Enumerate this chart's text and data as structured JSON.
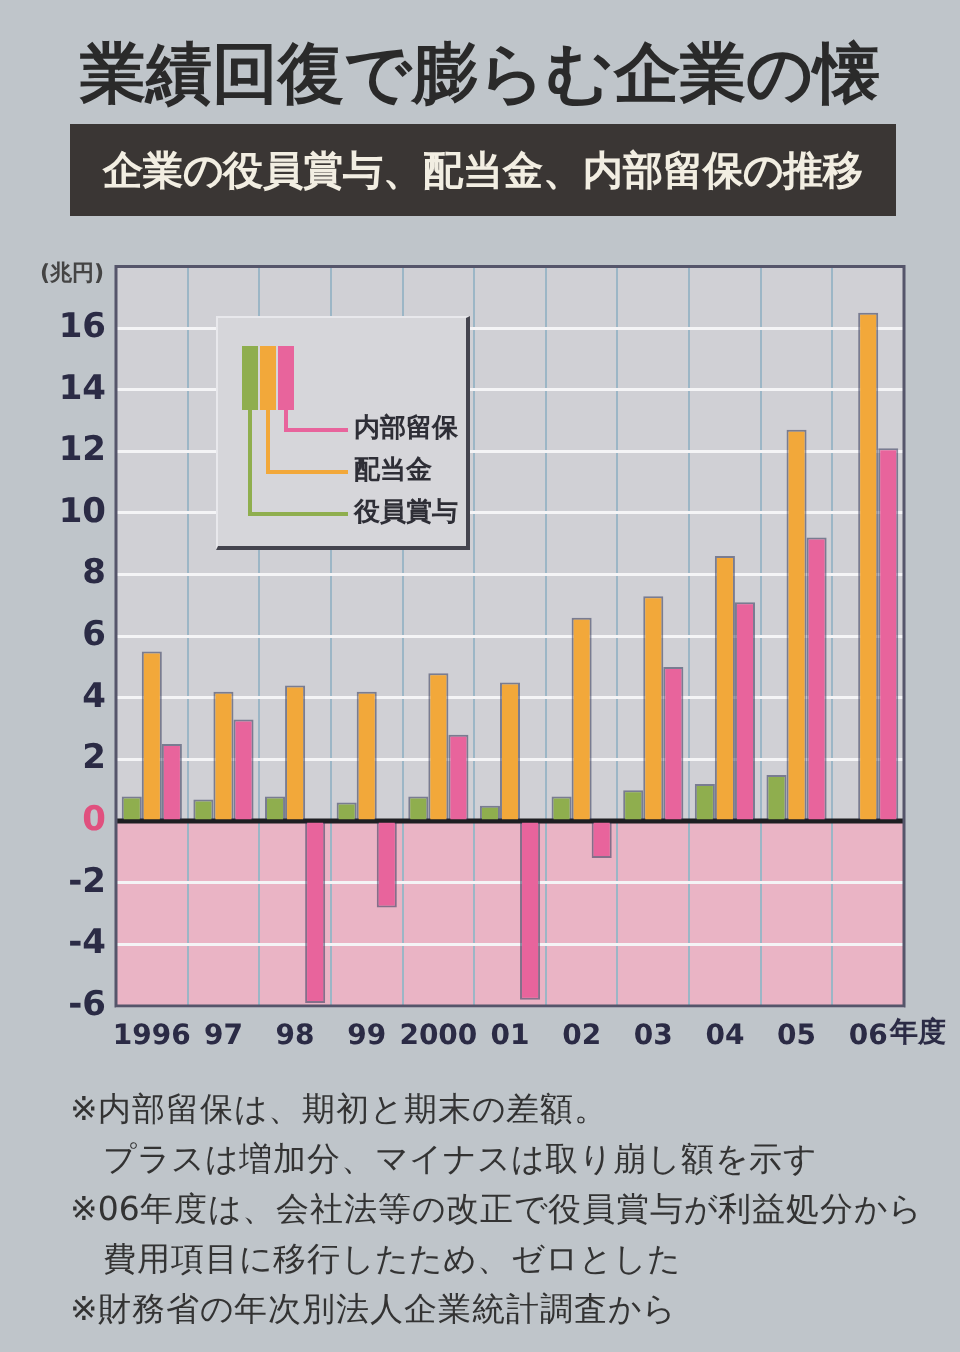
{
  "chart_data": {
    "type": "bar",
    "title": "業績回復で膨らむ企業の懐",
    "subtitle": "企業の役員賞与、配当金、内部留保の推移",
    "ylabel": "(兆円)",
    "xlabel": "年度",
    "categories": [
      "1996",
      "97",
      "98",
      "99",
      "2000",
      "01",
      "02",
      "03",
      "04",
      "05",
      "06"
    ],
    "series": [
      {
        "name": "役員賞与",
        "color": "#8fae4e",
        "values": [
          0.8,
          0.7,
          0.8,
          0.6,
          0.8,
          0.5,
          0.8,
          1.0,
          1.2,
          1.5,
          0
        ]
      },
      {
        "name": "配当金",
        "color": "#f2a83a",
        "values": [
          5.5,
          4.2,
          4.4,
          4.2,
          4.8,
          4.5,
          6.6,
          7.3,
          8.6,
          12.7,
          16.5
        ]
      },
      {
        "name": "内部留保",
        "color": "#e8649c",
        "values": [
          2.5,
          3.3,
          -5.9,
          -2.8,
          2.8,
          -5.8,
          -1.2,
          5.0,
          7.1,
          9.2,
          12.1
        ]
      }
    ],
    "ylim": [
      -6,
      18
    ],
    "yticks": [
      -6,
      -4,
      -2,
      0,
      2,
      4,
      6,
      8,
      10,
      12,
      14,
      16
    ],
    "grid": true,
    "legend": "top left",
    "bands": [
      {
        "axis": "y",
        "from": -6,
        "to": 0,
        "color": "#eab4c5"
      }
    ],
    "annotations": [
      "※内部留保は、期初と期末の差額。プラスは増加分、マイナスは取り崩し額を示す",
      "※06年度は、会社法等の改正で役員賞与が利益処分から費用項目に移行したため、ゼロとした",
      "※財務省の年次別法人企業統計調査から"
    ]
  }
}
